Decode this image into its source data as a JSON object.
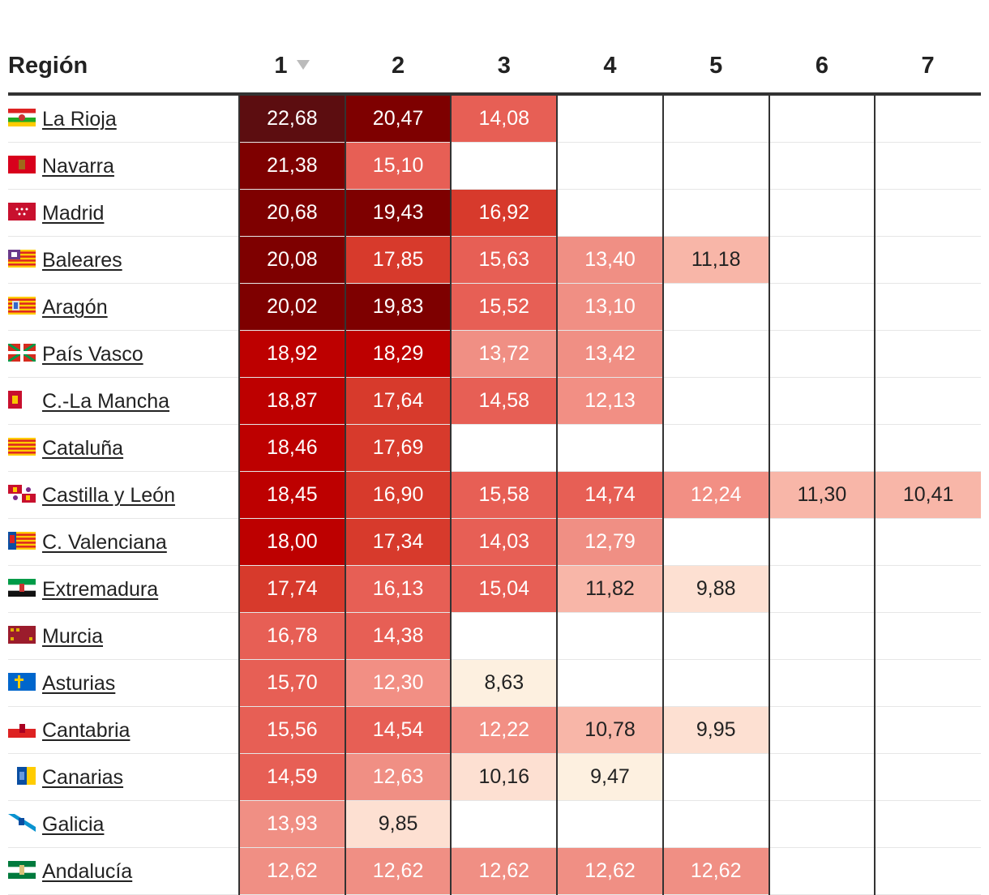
{
  "table": {
    "header_region": "Región",
    "columns": [
      "1",
      "2",
      "3",
      "4",
      "5",
      "6",
      "7"
    ],
    "sort": {
      "column": "1",
      "direction": "desc",
      "icon": "sort-down-icon"
    }
  },
  "chart_data": {
    "type": "heatmap",
    "categories": [
      "1",
      "2",
      "3",
      "4",
      "5",
      "6",
      "7"
    ],
    "rows": [
      {
        "region": "La Rioja",
        "flag": "la-rioja-flag-icon",
        "values": [
          "22,68",
          "20,47",
          "14,08",
          null,
          null,
          null,
          null
        ]
      },
      {
        "region": "Navarra",
        "flag": "navarra-flag-icon",
        "values": [
          "21,38",
          "15,10",
          null,
          null,
          null,
          null,
          null
        ]
      },
      {
        "region": "Madrid",
        "flag": "madrid-flag-icon",
        "values": [
          "20,68",
          "19,43",
          "16,92",
          null,
          null,
          null,
          null
        ]
      },
      {
        "region": "Baleares",
        "flag": "baleares-flag-icon",
        "values": [
          "20,08",
          "17,85",
          "15,63",
          "13,40",
          "11,18",
          null,
          null
        ]
      },
      {
        "region": "Aragón",
        "flag": "aragon-flag-icon",
        "values": [
          "20,02",
          "19,83",
          "15,52",
          "13,10",
          null,
          null,
          null
        ]
      },
      {
        "region": "País Vasco",
        "flag": "pais-vasco-flag-icon",
        "values": [
          "18,92",
          "18,29",
          "13,72",
          "13,42",
          null,
          null,
          null
        ]
      },
      {
        "region": "C.-La Mancha",
        "flag": "castilla-la-mancha-flag-icon",
        "values": [
          "18,87",
          "17,64",
          "14,58",
          "12,13",
          null,
          null,
          null
        ]
      },
      {
        "region": "Cataluña",
        "flag": "cataluna-flag-icon",
        "values": [
          "18,46",
          "17,69",
          null,
          null,
          null,
          null,
          null
        ]
      },
      {
        "region": "Castilla y León",
        "flag": "castilla-y-leon-flag-icon",
        "values": [
          "18,45",
          "16,90",
          "15,58",
          "14,74",
          "12,24",
          "11,30",
          "10,41"
        ]
      },
      {
        "region": "C. Valenciana",
        "flag": "c-valenciana-flag-icon",
        "values": [
          "18,00",
          "17,34",
          "14,03",
          "12,79",
          null,
          null,
          null
        ]
      },
      {
        "region": "Extremadura",
        "flag": "extremadura-flag-icon",
        "values": [
          "17,74",
          "16,13",
          "15,04",
          "11,82",
          "9,88",
          null,
          null
        ]
      },
      {
        "region": "Murcia",
        "flag": "murcia-flag-icon",
        "values": [
          "16,78",
          "14,38",
          null,
          null,
          null,
          null,
          null
        ]
      },
      {
        "region": "Asturias",
        "flag": "asturias-flag-icon",
        "values": [
          "15,70",
          "12,30",
          "8,63",
          null,
          null,
          null,
          null
        ]
      },
      {
        "region": "Cantabria",
        "flag": "cantabria-flag-icon",
        "values": [
          "15,56",
          "14,54",
          "12,22",
          "10,78",
          "9,95",
          null,
          null
        ]
      },
      {
        "region": "Canarias",
        "flag": "canarias-flag-icon",
        "values": [
          "14,59",
          "12,63",
          "10,16",
          "9,47",
          null,
          null,
          null
        ]
      },
      {
        "region": "Galicia",
        "flag": "galicia-flag-icon",
        "values": [
          "13,93",
          "9,85",
          null,
          null,
          null,
          null,
          null
        ]
      },
      {
        "region": "Andalucía",
        "flag": "andalucia-flag-icon",
        "values": [
          "12,62",
          "12,62",
          "12,62",
          "12,62",
          "12,62",
          null,
          null
        ]
      }
    ]
  },
  "colors": {
    "text_dark": "#222222",
    "text_light": "#ffffff",
    "divider": "#333333",
    "scale": [
      {
        "min": 22.0,
        "color": "#5c0d10"
      },
      {
        "min": 19.4,
        "color": "#7e0000"
      },
      {
        "min": 18.0,
        "color": "#bd0000"
      },
      {
        "min": 16.8,
        "color": "#d73a2c"
      },
      {
        "min": 14.0,
        "color": "#e75f55"
      },
      {
        "min": 12.5,
        "color": "#f08f84"
      },
      {
        "min": 12.0,
        "color": "#f28f84"
      },
      {
        "min": 10.4,
        "color": "#f8b6a8"
      },
      {
        "min": 9.5,
        "color": "#fde0d2"
      },
      {
        "min": 0,
        "color": "#fdf0e0"
      }
    ]
  }
}
